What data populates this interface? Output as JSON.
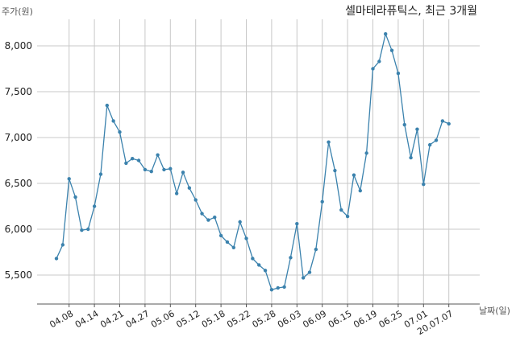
{
  "chart_data": {
    "type": "line",
    "title": "셀마테라퓨틱스, 최근 3개월",
    "ylabel": "주가(원)",
    "xlabel": "날짜(일)",
    "ylim": [
      5200,
      8400
    ],
    "yticks": [
      5500,
      6000,
      6500,
      7000,
      7500,
      8000
    ],
    "ytick_labels": [
      "5,500",
      "6,000",
      "6,500",
      "7,000",
      "7,500",
      "8,000"
    ],
    "xtick_labels": [
      "04.08",
      "04.14",
      "04.21",
      "04.27",
      "05.06",
      "05.12",
      "05.18",
      "05.22",
      "05.28",
      "06.03",
      "06.09",
      "06.15",
      "06.19",
      "06.25",
      "07.01",
      "20.07.07"
    ],
    "xtick_index": [
      2,
      6,
      10,
      14,
      18,
      22,
      26,
      30,
      34,
      38,
      42,
      46,
      50,
      54,
      58,
      62
    ],
    "grid": true,
    "line_color": "#3b82ad",
    "values": [
      5680,
      5830,
      6550,
      6350,
      5990,
      6000,
      6250,
      6600,
      7350,
      7180,
      7060,
      6720,
      6770,
      6750,
      6650,
      6630,
      6810,
      6650,
      6660,
      6390,
      6620,
      6450,
      6320,
      6170,
      6100,
      6130,
      5930,
      5860,
      5800,
      6080,
      5900,
      5680,
      5610,
      5550,
      5340,
      5360,
      5370,
      5690,
      6060,
      5470,
      5530,
      5780,
      6300,
      6950,
      6640,
      6210,
      6140,
      6590,
      6420,
      6830,
      7750,
      7830,
      8130,
      7950,
      7700,
      7140,
      6780,
      7090,
      6490,
      6920,
      6970,
      7180,
      7150
    ]
  }
}
